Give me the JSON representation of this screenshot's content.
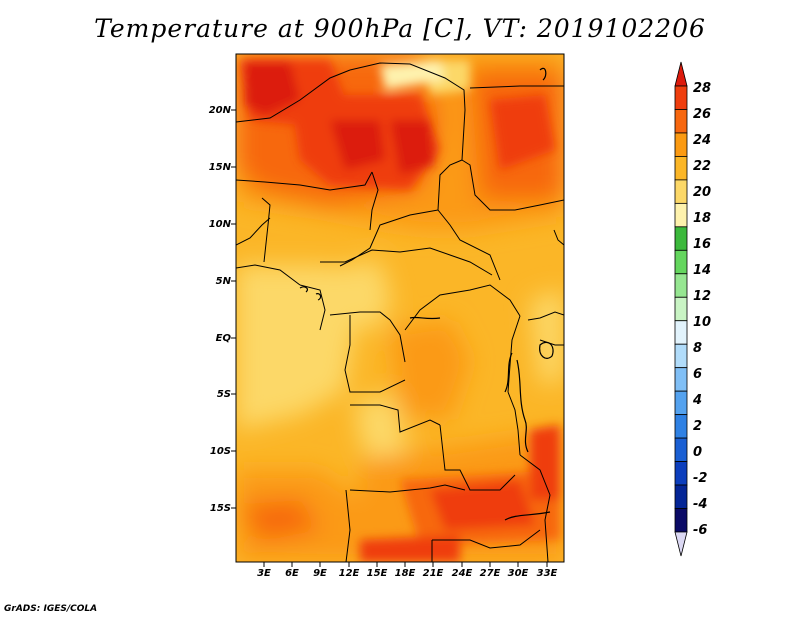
{
  "title": "Temperature at 900hPa [C], VT: 2019102206",
  "credit": "GrADS: IGES/COLA",
  "map": {
    "region": "Central Africa",
    "variable": "Temperature at 900hPa",
    "units": "C",
    "valid_time": "2019102206",
    "lat_ticks": [
      "20N",
      "15N",
      "10N",
      "5N",
      "EQ",
      "5S",
      "10S",
      "15S"
    ],
    "lon_ticks": [
      "3E",
      "6E",
      "9E",
      "12E",
      "15E",
      "18E",
      "21E",
      "24E",
      "27E",
      "30E",
      "33E"
    ]
  },
  "colorbar": {
    "labels": [
      "28",
      "26",
      "24",
      "22",
      "20",
      "18",
      "16",
      "14",
      "12",
      "10",
      "8",
      "6",
      "4",
      "2",
      "0",
      "-2",
      "-4",
      "-6"
    ],
    "colors": [
      "#dc1a0c",
      "#ef3e0e",
      "#f7670f",
      "#fb9a12",
      "#fbb627",
      "#fcd868",
      "#fef2ad",
      "#3cb93c",
      "#64d65e",
      "#96e691",
      "#c9f4c4",
      "#e2f3fc",
      "#b1dcfa",
      "#80bff6",
      "#54a2ef",
      "#2f81e4",
      "#1a5fd3",
      "#0c3ebd",
      "#042596",
      "#0a0a66",
      "#dbd8f3"
    ]
  }
}
